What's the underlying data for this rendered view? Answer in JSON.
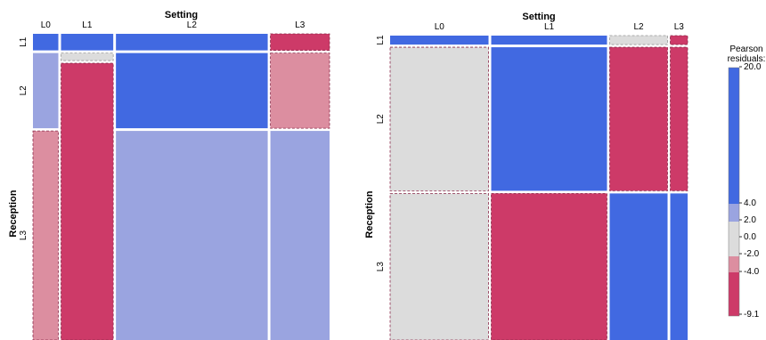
{
  "chart_data": [
    {
      "type": "mosaic",
      "xlabel": "Setting",
      "ylabel": "Reception",
      "columns": [
        "L0",
        "L1",
        "L2",
        "L3"
      ],
      "rows": [
        "L1",
        "L2",
        "L3"
      ],
      "col_widths": [
        0.088,
        0.181,
        0.526,
        0.205
      ],
      "cells": {
        "L1": {
          "heights": [
            0.055,
            0.055,
            0.055,
            0.055
          ],
          "residuals": [
            20,
            20,
            20,
            -9.1
          ]
        },
        "L2": {
          "heights": [
            0.25,
            0.025,
            0.25,
            0.25
          ],
          "residuals": [
            2.5,
            0.0,
            20.0,
            -3.0
          ]
        },
        "L3": {
          "heights": [
            0.695,
            0.92,
            0.695,
            0.695
          ],
          "residuals": [
            -3.0,
            -9.1,
            3.0,
            3.0
          ]
        }
      }
    },
    {
      "type": "mosaic",
      "xlabel": "Setting",
      "ylabel": "Reception",
      "columns": [
        "L0",
        "L1",
        "L2",
        "L3"
      ],
      "rows": [
        "L1",
        "L2",
        "L3"
      ],
      "col_widths": [
        0.34,
        0.4,
        0.2,
        0.06
      ],
      "cells": {
        "L1": {
          "heights": [
            0.03,
            0.03,
            0.03,
            0.03
          ],
          "residuals": [
            20,
            20,
            0.0,
            -9.1
          ]
        },
        "L2": {
          "heights": [
            0.48,
            0.48,
            0.48,
            0.48
          ],
          "residuals": [
            -1.0,
            20.0,
            -9.1,
            -9.1
          ]
        },
        "L3": {
          "heights": [
            0.49,
            0.49,
            0.49,
            0.49
          ],
          "residuals": [
            -1.0,
            -9.1,
            20.0,
            20.0
          ]
        }
      }
    }
  ],
  "legend": {
    "title_line1": "Pearson",
    "title_line2": "residuals:",
    "ticks": [
      "20.0",
      "4.0",
      "2.0",
      "0.0",
      "-2.0",
      "-4.0",
      "-9.1"
    ],
    "colors": {
      "strong_pos": "#4169e1",
      "weak_pos": "#9aa4e0",
      "neutral": "#dcdcdc",
      "weak_neg": "#dc8ea0",
      "strong_neg": "#cd3a68"
    }
  }
}
